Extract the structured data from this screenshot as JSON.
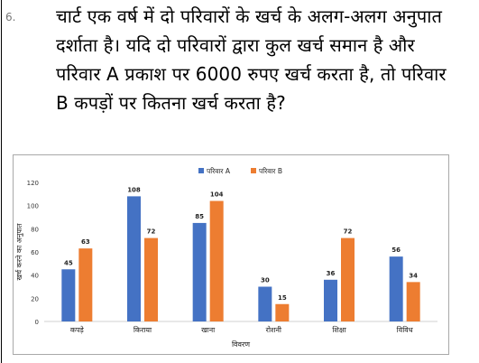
{
  "question": {
    "number": "6.",
    "text": "चार्ट एक वर्ष में दो परिवारों के खर्च के अलग-अलग अनुपात दर्शाता है। यदि दो परिवारों द्वारा कुल खर्च समान है और परिवार A प्रकाश पर 6000 रुपए खर्च करता है, तो परिवार B कपड़ों पर कितना खर्च करता है?"
  },
  "chart_data": {
    "type": "bar",
    "categories": [
      "कपड़े",
      "किराया",
      "खाना",
      "रोशनी",
      "शिक्षा",
      "विविध"
    ],
    "series": [
      {
        "name": "परिवार A",
        "values": [
          45,
          108,
          85,
          30,
          36,
          56
        ],
        "color": "#4472c4"
      },
      {
        "name": "परिवार B",
        "values": [
          63,
          72,
          104,
          15,
          72,
          34
        ],
        "color": "#ed7d31"
      }
    ],
    "xlabel": "विवरण",
    "ylabel": "खर्च करने का अनुपात",
    "ylim": [
      0,
      120
    ],
    "yticks": [
      0,
      20,
      40,
      60,
      80,
      100,
      120
    ],
    "legend": "top-center",
    "grid": false,
    "data_labels": true
  }
}
